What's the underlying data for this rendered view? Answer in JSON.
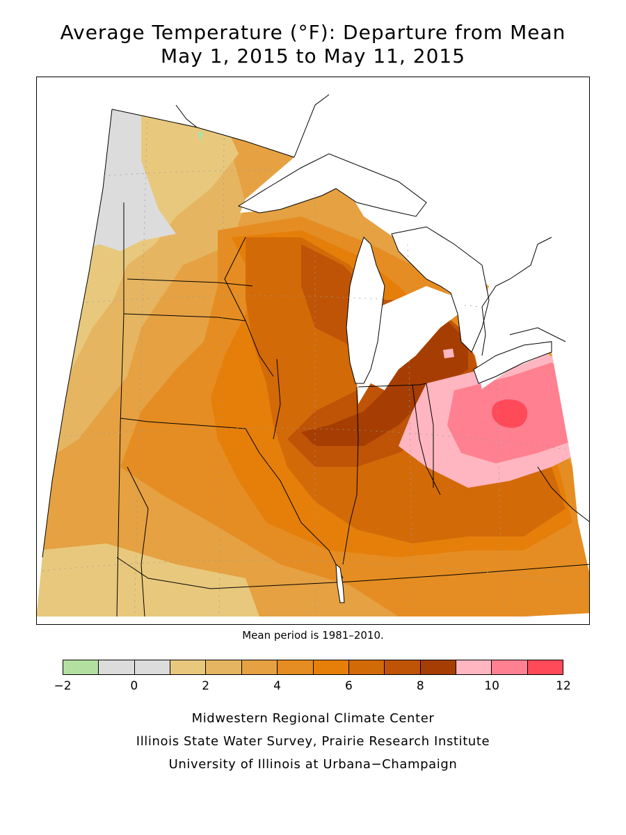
{
  "title": {
    "line1": "Average Temperature (°F): Departure from Mean",
    "line2": "May 1, 2015 to May 11, 2015"
  },
  "map": {
    "note": "Mean period is 1981–2010.",
    "colors": {
      "water": "#ffffff",
      "c_neg2_neg1": "#b3dfa0",
      "c_neg1_1": "#dcdcdc",
      "c_1_2": "#e8c87c",
      "c_2_3": "#e6b561",
      "c_3_4": "#e5a142",
      "c_4_5": "#e58d22",
      "c_5_6": "#e57f09",
      "c_6_7": "#d36a08",
      "c_7_8": "#bf5407",
      "c_8_9": "#a63e03",
      "c_9_10": "#ffb6c1",
      "c_10_11": "#ff8090",
      "c_11_12": "#ff4a5a"
    }
  },
  "legend": {
    "bins": [
      {
        "from": -2,
        "to": -1,
        "color": "#b3dfa0"
      },
      {
        "from": -1,
        "to": 0,
        "color": "#dcdcdc"
      },
      {
        "from": 0,
        "to": 1,
        "color": "#dcdcdc"
      },
      {
        "from": 1,
        "to": 2,
        "color": "#e8c87c"
      },
      {
        "from": 2,
        "to": 3,
        "color": "#e6b561"
      },
      {
        "from": 3,
        "to": 4,
        "color": "#e5a142"
      },
      {
        "from": 4,
        "to": 5,
        "color": "#e58d22"
      },
      {
        "from": 5,
        "to": 6,
        "color": "#e57f09"
      },
      {
        "from": 6,
        "to": 7,
        "color": "#d36a08"
      },
      {
        "from": 7,
        "to": 8,
        "color": "#bf5407"
      },
      {
        "from": 8,
        "to": 9,
        "color": "#a63e03"
      },
      {
        "from": 9,
        "to": 10,
        "color": "#ffb6c1"
      },
      {
        "from": 10,
        "to": 11,
        "color": "#ff8090"
      },
      {
        "from": 11,
        "to": 12,
        "color": "#ff4a5a"
      }
    ],
    "ticks": [
      "−2",
      "0",
      "2",
      "4",
      "6",
      "8",
      "10",
      "12"
    ]
  },
  "credits": {
    "line1": "Midwestern Regional Climate Center",
    "line2": "Illinois State Water Survey, Prairie Research Institute",
    "line3": "University of Illinois at Urbana−Champaign"
  }
}
